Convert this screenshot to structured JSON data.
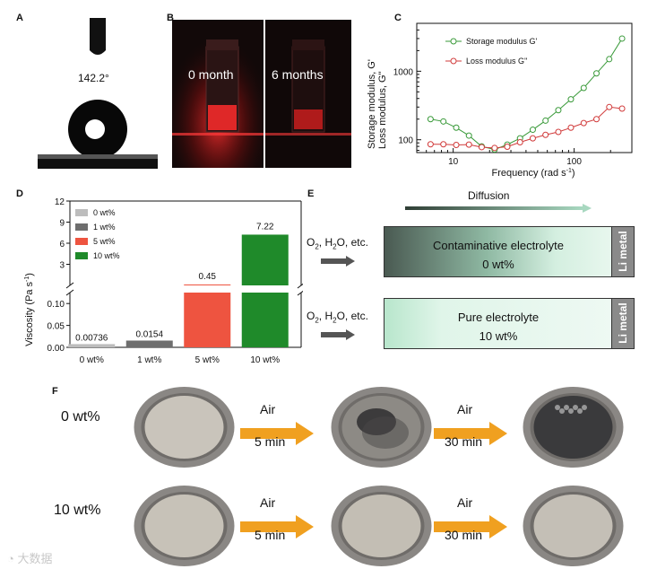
{
  "panels": {
    "a": {
      "label": "A",
      "angle": "142.2°"
    },
    "b": {
      "label": "B",
      "left_caption": "0 month",
      "right_caption": "6 months"
    },
    "c": {
      "label": "C"
    },
    "d": {
      "label": "D"
    },
    "e": {
      "label": "E"
    },
    "f": {
      "label": "F"
    }
  },
  "chart_data": [
    {
      "id": "rheology",
      "type": "line",
      "ylabel_1": "Storage modulus, G'",
      "ylabel_2": "Loss modulus, G''",
      "xlabel": "Frequency (rad s",
      "xlabel_sup": "-1",
      "xlabel_close": ")",
      "xscale": "log",
      "yscale": "log",
      "xlim": [
        5,
        300
      ],
      "ylim": [
        65,
        5000
      ],
      "xticks": [
        {
          "v": 10,
          "label": "10"
        },
        {
          "v": 100,
          "label": "100"
        }
      ],
      "yticks": [
        {
          "v": 100,
          "label": "100"
        },
        {
          "v": 1000,
          "label": "1000"
        }
      ],
      "legend_position": "top-left",
      "series": [
        {
          "name": "Storage modulus G'",
          "color": "#3a9a3a",
          "x": [
            6.5,
            8.3,
            10.6,
            13.5,
            17.2,
            22,
            28,
            35.7,
            45.5,
            58,
            74,
            94,
            120,
            153,
            195,
            249
          ],
          "y": [
            200,
            185,
            150,
            115,
            80,
            72,
            85,
            105,
            140,
            190,
            270,
            390,
            570,
            930,
            1500,
            3000
          ]
        },
        {
          "name": "Loss modulus G''",
          "color": "#d13b3b",
          "x": [
            6.5,
            8.3,
            10.6,
            13.5,
            17.2,
            22,
            28,
            35.7,
            45.5,
            58,
            74,
            94,
            120,
            153,
            195,
            249
          ],
          "y": [
            86,
            86,
            84,
            85,
            78,
            76,
            79,
            92,
            105,
            118,
            130,
            150,
            175,
            200,
            300,
            285
          ]
        }
      ]
    },
    {
      "id": "viscosity",
      "type": "bar",
      "ylabel": "Viscosity (Pa s",
      "ylabel_sup": "-1",
      "ylabel_close": ")",
      "categories": [
        "0 wt%",
        "1 wt%",
        "5 wt%",
        "10 wt%"
      ],
      "values": [
        0.00736,
        0.0154,
        0.45,
        7.22
      ],
      "value_labels": [
        "0.00736",
        "0.0154",
        "0.45",
        "7.22"
      ],
      "colors": [
        "#bdbdbd",
        "#6e6e6e",
        "#ee5440",
        "#1f8a2a"
      ],
      "lower_axis": {
        "ylim": [
          0,
          0.125
        ],
        "ticks": [
          "0.00",
          "0.05",
          "0.10"
        ],
        "tick_values": [
          0,
          0.05,
          0.1
        ]
      },
      "upper_axis": {
        "ylim": [
          0,
          12
        ],
        "ticks": [
          "3",
          "6",
          "9",
          "12"
        ],
        "tick_values": [
          3,
          6,
          9,
          12
        ]
      },
      "legend": [
        "0 wt%",
        "1 wt%",
        "5 wt%",
        "10 wt%"
      ],
      "legend_position": "top-left"
    }
  ],
  "diagram": {
    "diffusion_label": "Diffusion",
    "top": {
      "reagents": "O",
      "r_sub1": "2",
      "r_mid": ", H",
      "r_sub2": "2",
      "r_tail": "O, etc.",
      "title": "Contaminative electrolyte",
      "sub": "0 wt%",
      "metal": "Li metal"
    },
    "bottom": {
      "reagents": "O",
      "r_sub1": "2",
      "r_mid": ", H",
      "r_sub2": "2",
      "r_tail": "O, etc.",
      "title": "Pure electrolyte",
      "sub": "10 wt%",
      "metal": "Li metal"
    }
  },
  "air_exposure": {
    "rows": [
      {
        "label": "0 wt%",
        "arrow1_top": "Air",
        "arrow1_bottom": "5 min",
        "arrow2_top": "Air",
        "arrow2_bottom": "30 min"
      },
      {
        "label": "10 wt%",
        "arrow1_top": "Air",
        "arrow1_bottom": "5 min",
        "arrow2_top": "Air",
        "arrow2_bottom": "30 min"
      }
    ],
    "arrow_color": "#f0a020"
  },
  "watermark": "大数据"
}
